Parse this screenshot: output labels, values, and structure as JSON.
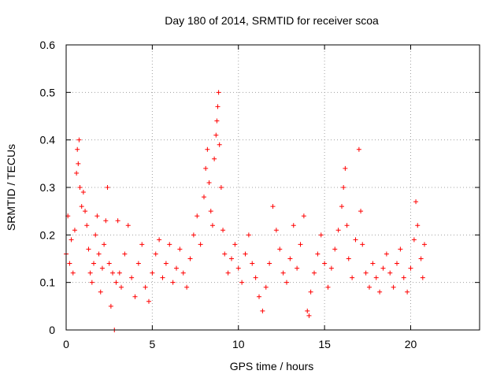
{
  "chart_data": {
    "type": "scatter",
    "title": "Day 180 of 2014, SRMTID for receiver scoa",
    "xlabel": "GPS time / hours",
    "ylabel": "SRMTID / TECUs",
    "xlim": [
      0,
      24
    ],
    "ylim": [
      0,
      0.6
    ],
    "x_ticks": [
      0,
      5,
      10,
      15,
      20
    ],
    "x_tick_labels": [
      "0",
      "5",
      "10",
      "15",
      "20"
    ],
    "y_ticks": [
      0,
      0.1,
      0.2,
      0.3,
      0.4,
      0.5,
      0.6
    ],
    "y_tick_labels": [
      "0",
      "0.1",
      "0.2",
      "0.3",
      "0.4",
      "0.5",
      "0.6"
    ],
    "grid": true,
    "marker": "plus",
    "series": [
      {
        "name": "SRMTID",
        "color": "#ff0000",
        "points": [
          [
            0.0,
            0.16
          ],
          [
            0.1,
            0.24
          ],
          [
            0.2,
            0.14
          ],
          [
            0.3,
            0.19
          ],
          [
            0.4,
            0.12
          ],
          [
            0.5,
            0.21
          ],
          [
            0.6,
            0.33
          ],
          [
            0.65,
            0.38
          ],
          [
            0.7,
            0.35
          ],
          [
            0.75,
            0.4
          ],
          [
            0.8,
            0.3
          ],
          [
            0.9,
            0.26
          ],
          [
            1.0,
            0.29
          ],
          [
            1.1,
            0.25
          ],
          [
            1.2,
            0.22
          ],
          [
            1.3,
            0.17
          ],
          [
            1.4,
            0.12
          ],
          [
            1.5,
            0.1
          ],
          [
            1.6,
            0.14
          ],
          [
            1.7,
            0.2
          ],
          [
            1.8,
            0.24
          ],
          [
            1.9,
            0.16
          ],
          [
            2.0,
            0.08
          ],
          [
            2.1,
            0.13
          ],
          [
            2.2,
            0.18
          ],
          [
            2.3,
            0.23
          ],
          [
            2.4,
            0.3
          ],
          [
            2.5,
            0.14
          ],
          [
            2.6,
            0.05
          ],
          [
            2.7,
            0.12
          ],
          [
            2.8,
            0.0
          ],
          [
            2.9,
            0.1
          ],
          [
            3.0,
            0.23
          ],
          [
            3.1,
            0.12
          ],
          [
            3.2,
            0.09
          ],
          [
            3.4,
            0.16
          ],
          [
            3.6,
            0.22
          ],
          [
            3.8,
            0.11
          ],
          [
            4.0,
            0.07
          ],
          [
            4.2,
            0.14
          ],
          [
            4.4,
            0.18
          ],
          [
            4.6,
            0.09
          ],
          [
            4.8,
            0.06
          ],
          [
            5.0,
            0.12
          ],
          [
            5.2,
            0.16
          ],
          [
            5.4,
            0.19
          ],
          [
            5.6,
            0.11
          ],
          [
            5.8,
            0.14
          ],
          [
            6.0,
            0.18
          ],
          [
            6.2,
            0.1
          ],
          [
            6.4,
            0.13
          ],
          [
            6.6,
            0.17
          ],
          [
            6.8,
            0.12
          ],
          [
            7.0,
            0.09
          ],
          [
            7.2,
            0.15
          ],
          [
            7.4,
            0.2
          ],
          [
            7.6,
            0.24
          ],
          [
            7.8,
            0.18
          ],
          [
            8.0,
            0.28
          ],
          [
            8.1,
            0.34
          ],
          [
            8.2,
            0.38
          ],
          [
            8.3,
            0.31
          ],
          [
            8.4,
            0.25
          ],
          [
            8.5,
            0.22
          ],
          [
            8.6,
            0.36
          ],
          [
            8.7,
            0.41
          ],
          [
            8.75,
            0.44
          ],
          [
            8.8,
            0.47
          ],
          [
            8.85,
            0.5
          ],
          [
            8.9,
            0.39
          ],
          [
            9.0,
            0.3
          ],
          [
            9.1,
            0.21
          ],
          [
            9.2,
            0.16
          ],
          [
            9.4,
            0.12
          ],
          [
            9.6,
            0.15
          ],
          [
            9.8,
            0.18
          ],
          [
            10.0,
            0.13
          ],
          [
            10.2,
            0.1
          ],
          [
            10.4,
            0.16
          ],
          [
            10.6,
            0.2
          ],
          [
            10.8,
            0.14
          ],
          [
            11.0,
            0.11
          ],
          [
            11.2,
            0.07
          ],
          [
            11.4,
            0.04
          ],
          [
            11.6,
            0.09
          ],
          [
            11.8,
            0.14
          ],
          [
            12.0,
            0.26
          ],
          [
            12.2,
            0.21
          ],
          [
            12.4,
            0.17
          ],
          [
            12.6,
            0.12
          ],
          [
            12.8,
            0.1
          ],
          [
            13.0,
            0.15
          ],
          [
            13.2,
            0.22
          ],
          [
            13.4,
            0.13
          ],
          [
            13.6,
            0.18
          ],
          [
            13.8,
            0.24
          ],
          [
            14.0,
            0.04
          ],
          [
            14.1,
            0.03
          ],
          [
            14.2,
            0.08
          ],
          [
            14.4,
            0.12
          ],
          [
            14.6,
            0.16
          ],
          [
            14.8,
            0.2
          ],
          [
            15.0,
            0.14
          ],
          [
            15.2,
            0.09
          ],
          [
            15.4,
            0.13
          ],
          [
            15.6,
            0.17
          ],
          [
            15.8,
            0.21
          ],
          [
            16.0,
            0.26
          ],
          [
            16.1,
            0.3
          ],
          [
            16.2,
            0.34
          ],
          [
            16.3,
            0.22
          ],
          [
            16.4,
            0.15
          ],
          [
            16.6,
            0.11
          ],
          [
            16.8,
            0.19
          ],
          [
            17.0,
            0.38
          ],
          [
            17.1,
            0.25
          ],
          [
            17.2,
            0.18
          ],
          [
            17.4,
            0.12
          ],
          [
            17.6,
            0.09
          ],
          [
            17.8,
            0.14
          ],
          [
            18.0,
            0.11
          ],
          [
            18.2,
            0.08
          ],
          [
            18.4,
            0.13
          ],
          [
            18.6,
            0.16
          ],
          [
            18.8,
            0.12
          ],
          [
            19.0,
            0.09
          ],
          [
            19.2,
            0.14
          ],
          [
            19.4,
            0.17
          ],
          [
            19.6,
            0.11
          ],
          [
            19.8,
            0.08
          ],
          [
            20.0,
            0.13
          ],
          [
            20.2,
            0.19
          ],
          [
            20.3,
            0.27
          ],
          [
            20.4,
            0.22
          ],
          [
            20.6,
            0.15
          ],
          [
            20.7,
            0.11
          ],
          [
            20.8,
            0.18
          ]
        ]
      }
    ]
  }
}
